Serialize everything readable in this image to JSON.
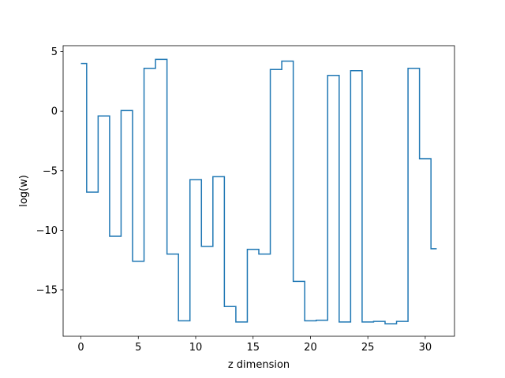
{
  "chart_data": {
    "type": "line",
    "style": "step-mid",
    "title": "",
    "xlabel": "z dimension",
    "ylabel": "log(w)",
    "xlim": [
      -1.55,
      32.55
    ],
    "ylim": [
      -18.9,
      5.5
    ],
    "xticks": [
      0,
      5,
      10,
      15,
      20,
      25,
      30
    ],
    "yticks": [
      5,
      0,
      -5,
      -10,
      -15
    ],
    "ytick_labels": [
      "5",
      "0",
      "−5",
      "−10",
      "−15"
    ],
    "grid": false,
    "legend": "none",
    "line_color": "#1f77b4",
    "series": [
      {
        "x": [
          0,
          1,
          2,
          3,
          4,
          5,
          6,
          7,
          8,
          9,
          10,
          11,
          12,
          13,
          14,
          15,
          16,
          17,
          18,
          19,
          20,
          21,
          22,
          23,
          24,
          25,
          26,
          27,
          28,
          29,
          30,
          31
        ],
        "y": [
          4.0,
          -6.8,
          -0.4,
          -10.5,
          0.05,
          -12.6,
          3.6,
          4.35,
          -12.0,
          -17.6,
          -5.75,
          -11.35,
          -5.5,
          -16.4,
          -17.7,
          -11.6,
          -12.0,
          3.5,
          4.2,
          -14.3,
          -17.6,
          -17.55,
          3.0,
          -17.7,
          3.4,
          -17.7,
          -17.65,
          -17.85,
          -17.65,
          3.6,
          -4.0,
          -11.55
        ]
      }
    ]
  }
}
